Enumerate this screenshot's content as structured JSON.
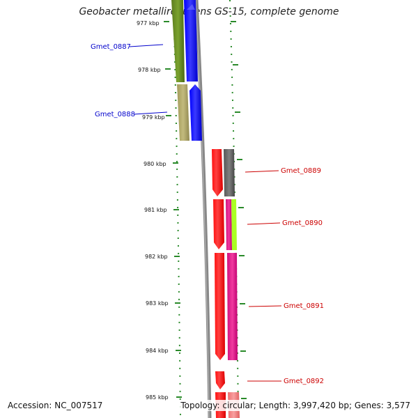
{
  "title": "Geobacter metallireducens GS-15, complete genome",
  "footer": {
    "accession": "Accession: NC_007517",
    "summary": "Topology: circular; Length: 3,997,420 bp; Genes: 3,577"
  },
  "scale_labels": [
    "977 kbp",
    "978 kbp",
    "979 kbp",
    "980 kbp",
    "981 kbp",
    "982 kbp",
    "983 kbp",
    "984 kbp",
    "985 kbp"
  ],
  "gene_labels": [
    {
      "name": "Gmet_0887",
      "color": "#0000cc",
      "side": "left"
    },
    {
      "name": "Gmet_0888",
      "color": "#0000cc",
      "side": "left"
    },
    {
      "name": "Gmet_0889",
      "color": "#cc0000",
      "side": "right"
    },
    {
      "name": "Gmet_0890",
      "color": "#cc0000",
      "side": "right"
    },
    {
      "name": "Gmet_0891",
      "color": "#cc0000",
      "side": "right"
    },
    {
      "name": "Gmet_0892",
      "color": "#cc0000",
      "side": "right"
    }
  ],
  "colors": {
    "backbone": "#888888",
    "tick_green": "#2a8a2a",
    "forward_cds": "#0000ff",
    "reverse_cds": "#ff0000",
    "olive": "#6b8e23",
    "khaki": "#b5ad6c",
    "gray_feature": "#666666",
    "magenta": "#e0188c",
    "lime": "#aaff22",
    "pink": "#f08080"
  }
}
